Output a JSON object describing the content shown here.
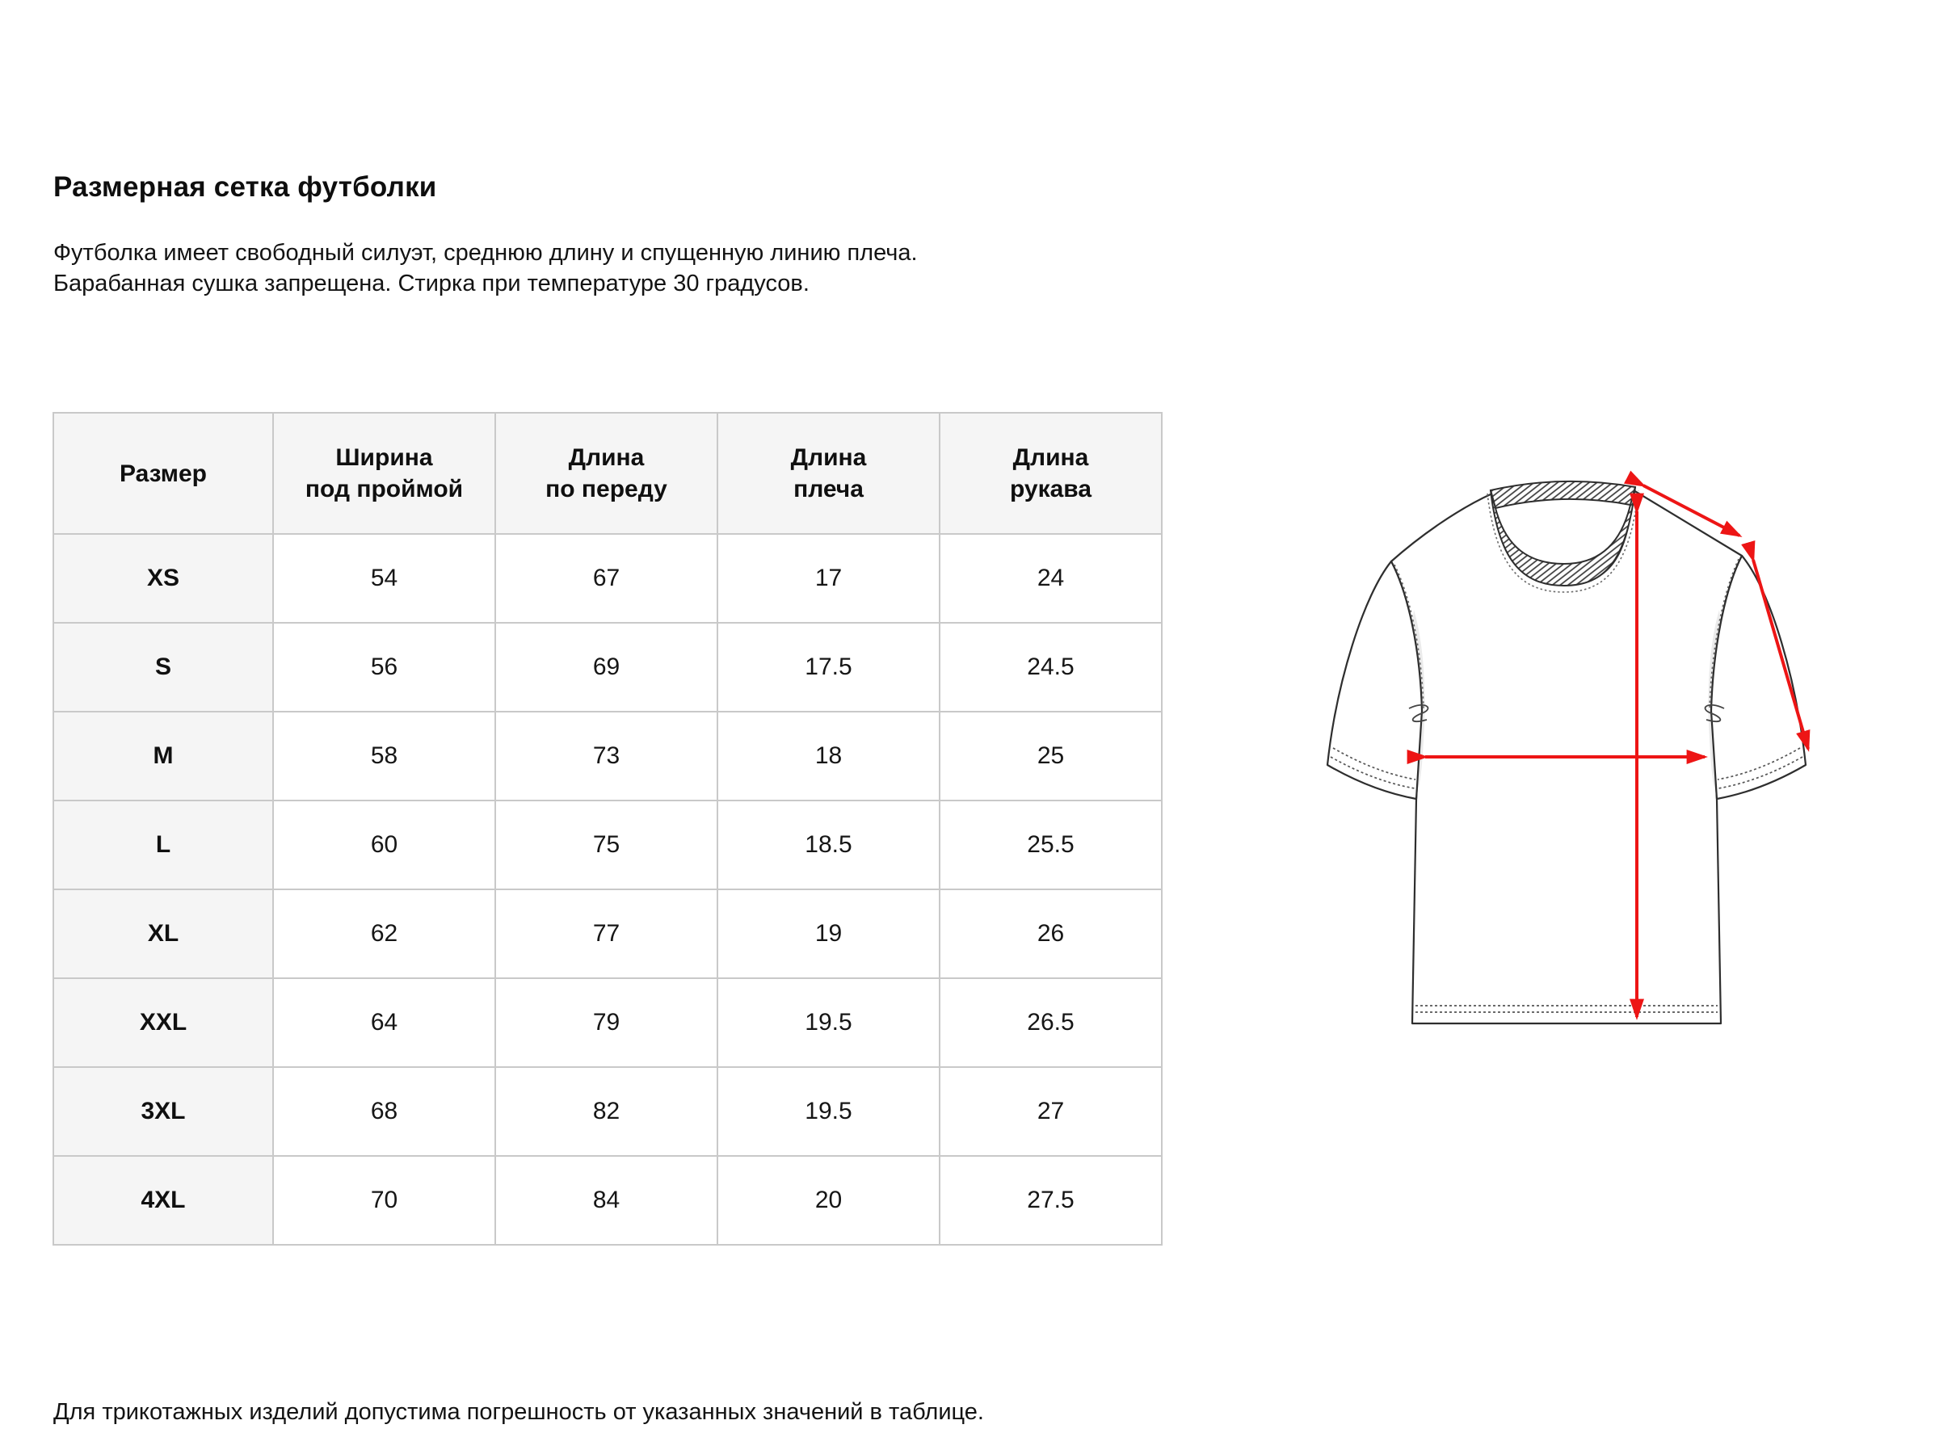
{
  "page": {
    "title": "Размерная сетка футболки",
    "description": "Футболка имеет свободный силуэт, среднюю длину и спущенную линию плеча.\nБарабанная сушка запрещена. Стирка при температуре 30 градусов.",
    "footnote": "Для трикотажных изделий допустима погрешность от указанных значений в таблице."
  },
  "size_table": {
    "columns": [
      "Размер",
      "Ширина\nпод проймой",
      "Длина\nпо переду",
      "Длина\nплеча",
      "Длина\nрукава"
    ],
    "rows": [
      {
        "size": "XS",
        "values": [
          "54",
          "67",
          "17",
          "24"
        ]
      },
      {
        "size": "S",
        "values": [
          "56",
          "69",
          "17.5",
          "24.5"
        ]
      },
      {
        "size": "M",
        "values": [
          "58",
          "73",
          "18",
          "25"
        ]
      },
      {
        "size": "L",
        "values": [
          "60",
          "75",
          "18.5",
          "25.5"
        ]
      },
      {
        "size": "XL",
        "values": [
          "62",
          "77",
          "19",
          "26"
        ]
      },
      {
        "size": "XXL",
        "values": [
          "64",
          "79",
          "19.5",
          "26.5"
        ]
      },
      {
        "size": "3XL",
        "values": [
          "68",
          "82",
          "19.5",
          "27"
        ]
      },
      {
        "size": "4XL",
        "values": [
          "70",
          "84",
          "20",
          "27.5"
        ]
      }
    ]
  },
  "diagram": {
    "arrow_color": "#ed1515",
    "outline_color": "#2e2e2e",
    "measurements": [
      "Длина плеча",
      "Длина рукава",
      "Ширина под проймой",
      "Длина по переду"
    ]
  }
}
